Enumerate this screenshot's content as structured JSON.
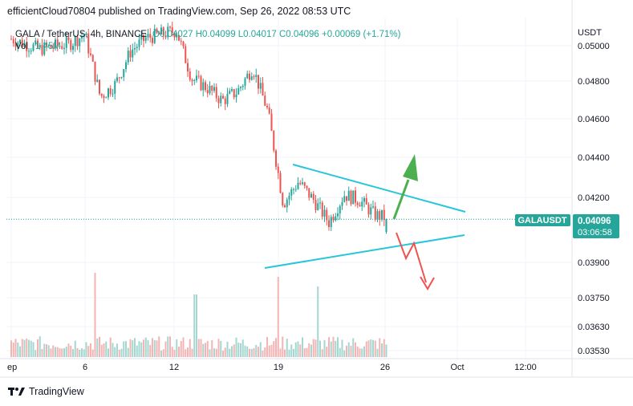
{
  "header": {
    "publisher_line": "efficientCloud70804 published on TradingView.com, Sep 26, 2022 08:53 UTC"
  },
  "legend": {
    "symbol": "GALA / TetherUS, 4h, BINANCE",
    "ohlc": "O0.04027 H0.04099 L0.04017 C0.04096 +0.00069 (+1.71%)",
    "volume_label": "Vol",
    "volume_value": "1.45M"
  },
  "price_tag": {
    "symbol": "GALAUSDT",
    "price": "0.04096",
    "countdown": "03:06:58"
  },
  "footer": {
    "brand": "TradingView"
  },
  "colors": {
    "up": "#26a69a",
    "down": "#ef5350",
    "trendline": "#26c6da",
    "arrow_up": "#4caf50",
    "arrow_down": "#ef5350",
    "tag_bg": "#26a69a"
  },
  "chart_data": {
    "type": "candlestick",
    "currency": "USDT",
    "y_ticks": [
      "0.05000",
      "0.04800",
      "0.04600",
      "0.04400",
      "0.04200",
      "0.03900",
      "0.03750",
      "0.03630",
      "0.03530"
    ],
    "x_ticks": [
      "ep",
      "6",
      "12",
      "19",
      "26",
      "Oct",
      "12:00"
    ],
    "approx_close_path": [
      {
        "date": "2022-09-01",
        "close": 0.0508
      },
      {
        "date": "2022-09-03",
        "close": 0.0502
      },
      {
        "date": "2022-09-05",
        "close": 0.0505
      },
      {
        "date": "2022-09-06",
        "close": 0.051
      },
      {
        "date": "2022-09-07",
        "close": 0.0476
      },
      {
        "date": "2022-09-08",
        "close": 0.0483
      },
      {
        "date": "2022-09-09",
        "close": 0.0501
      },
      {
        "date": "2022-09-10",
        "close": 0.0508
      },
      {
        "date": "2022-09-12",
        "close": 0.0512
      },
      {
        "date": "2022-09-13",
        "close": 0.0486
      },
      {
        "date": "2022-09-14",
        "close": 0.0481
      },
      {
        "date": "2022-09-15",
        "close": 0.0474
      },
      {
        "date": "2022-09-16",
        "close": 0.0479
      },
      {
        "date": "2022-09-17",
        "close": 0.0492
      },
      {
        "date": "2022-09-18",
        "close": 0.0468
      },
      {
        "date": "2022-09-19",
        "close": 0.0418
      },
      {
        "date": "2022-09-20",
        "close": 0.043
      },
      {
        "date": "2022-09-21",
        "close": 0.042
      },
      {
        "date": "2022-09-22",
        "close": 0.0408
      },
      {
        "date": "2022-09-23",
        "close": 0.0423
      },
      {
        "date": "2022-09-24",
        "close": 0.042
      },
      {
        "date": "2022-09-25",
        "close": 0.0412
      },
      {
        "date": "2022-09-26",
        "close": 0.041
      }
    ],
    "last_close": 0.04096,
    "pattern": "symmetrical triangle",
    "grid": true
  }
}
